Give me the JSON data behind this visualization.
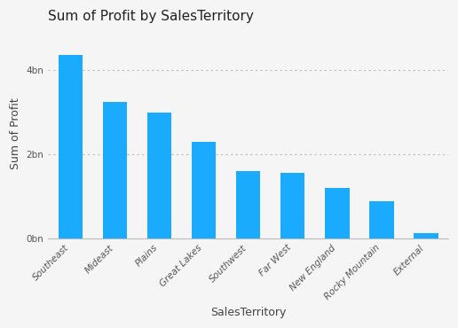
{
  "title": "Sum of Profit by SalesTerritory",
  "categories": [
    "Southeast",
    "Mideast",
    "Plains",
    "Great Lakes",
    "Southwest",
    "Far West",
    "New England",
    "Rocky Mountain",
    "External"
  ],
  "values": [
    4.35,
    3.25,
    3.0,
    2.3,
    1.6,
    1.57,
    1.2,
    0.9,
    0.13
  ],
  "bar_color": "#1aabff",
  "background_color": "#f5f5f5",
  "xlabel": "SalesTerritory",
  "ylabel": "Sum of Profit",
  "ylim": [
    0,
    5.0
  ],
  "yticks": [
    0,
    2,
    4
  ],
  "ytick_labels": [
    "0bn",
    "2bn",
    "4bn"
  ],
  "title_fontsize": 11,
  "axis_label_fontsize": 9,
  "tick_fontsize": 7.5,
  "grid_color": "#bbbbbb",
  "title_color": "#222222",
  "label_color": "#444444",
  "tick_color": "#555555"
}
